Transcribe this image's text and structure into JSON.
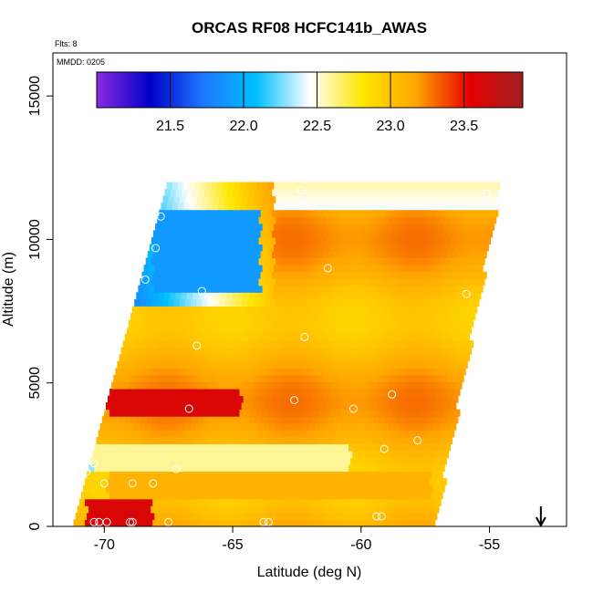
{
  "chart_data": {
    "type": "heatmap",
    "title": "ORCAS RF08 HCFC141b_AWAS",
    "annotation_flts": "Flts: 8",
    "annotation_mmdd": "MMDD: 0205",
    "xlabel": "Latitude (deg N)",
    "ylabel": "Altitude (m)",
    "xlim": [
      -72,
      -52
    ],
    "ylim": [
      0,
      16500
    ],
    "x_ticks": [
      -70,
      -65,
      -60,
      -55
    ],
    "x_tick_labels": [
      "-70",
      "-65",
      "-60",
      "-55"
    ],
    "y_ticks": [
      0,
      5000,
      10000,
      15000
    ],
    "y_tick_labels": [
      "0",
      "5000",
      "10000",
      "15000"
    ],
    "colorbar": {
      "range": [
        21.0,
        23.9
      ],
      "ticks": [
        21.5,
        22.0,
        22.5,
        23.0,
        23.5
      ],
      "tick_labels": [
        "21.5",
        "22.0",
        "22.5",
        "23.0",
        "23.5"
      ],
      "placement": "top-inside",
      "colors": [
        "#8a2be2",
        "#0000c8",
        "#1e78ff",
        "#00bfff",
        "#ffffff",
        "#ffe600",
        "#ffa500",
        "#e60000",
        "#a02020"
      ]
    },
    "field_extent": {
      "bottom_left": [
        -71.2,
        0
      ],
      "bottom_right": [
        -57.2,
        0
      ],
      "top_left": [
        -67.5,
        11500
      ],
      "top_right": [
        -54.6,
        12000
      ]
    },
    "bands": [
      {
        "alt_range": [
          0,
          900
        ],
        "lat_range": [
          -70.8,
          -68.2
        ],
        "value": 23.6
      },
      {
        "alt_range": [
          900,
          1800
        ],
        "lat_range": [
          -70.0,
          -57.4
        ],
        "value": 23.1
      },
      {
        "alt_range": [
          1800,
          2700
        ],
        "lat_range": [
          -70.6,
          -60.5
        ],
        "value": 22.6
      },
      {
        "alt_range": [
          3800,
          4700
        ],
        "lat_range": [
          -70.0,
          -64.8
        ],
        "value": 23.6
      },
      {
        "alt_range": [
          8000,
          11000
        ],
        "lat_range": [
          -68.2,
          -64.0
        ],
        "value": 21.9
      }
    ],
    "sample_points": [
      {
        "lat": -67.8,
        "alt": 10800
      },
      {
        "lat": -68.0,
        "alt": 9700
      },
      {
        "lat": -68.4,
        "alt": 8600
      },
      {
        "lat": -66.2,
        "alt": 8200
      },
      {
        "lat": -62.3,
        "alt": 11700
      },
      {
        "lat": -62.2,
        "alt": 11200
      },
      {
        "lat": -61.3,
        "alt": 9000
      },
      {
        "lat": -55.1,
        "alt": 11600
      },
      {
        "lat": -55.9,
        "alt": 8100
      },
      {
        "lat": -69.2,
        "alt": 7000
      },
      {
        "lat": -66.4,
        "alt": 6300
      },
      {
        "lat": -62.2,
        "alt": 6600
      },
      {
        "lat": -62.6,
        "alt": 4400
      },
      {
        "lat": -60.3,
        "alt": 4100
      },
      {
        "lat": -58.8,
        "alt": 4600
      },
      {
        "lat": -55.7,
        "alt": 4900
      },
      {
        "lat": -66.7,
        "alt": 4100
      },
      {
        "lat": -70.4,
        "alt": 4100
      },
      {
        "lat": -70.1,
        "alt": 4100
      },
      {
        "lat": -70.4,
        "alt": 2200
      },
      {
        "lat": -70.7,
        "alt": 1900
      },
      {
        "lat": -70.0,
        "alt": 1500
      },
      {
        "lat": -68.9,
        "alt": 1500
      },
      {
        "lat": -68.1,
        "alt": 1500
      },
      {
        "lat": -67.2,
        "alt": 2000
      },
      {
        "lat": -59.1,
        "alt": 2700
      },
      {
        "lat": -57.8,
        "alt": 3000
      },
      {
        "lat": -70.4,
        "alt": 150
      },
      {
        "lat": -70.2,
        "alt": 150
      },
      {
        "lat": -69.9,
        "alt": 150
      },
      {
        "lat": -69.0,
        "alt": 150
      },
      {
        "lat": -68.9,
        "alt": 150
      },
      {
        "lat": -67.5,
        "alt": 150
      },
      {
        "lat": -63.8,
        "alt": 150
      },
      {
        "lat": -63.6,
        "alt": 150
      },
      {
        "lat": -59.4,
        "alt": 350
      },
      {
        "lat": -59.2,
        "alt": 350
      }
    ],
    "arrow_marker": {
      "lat": -53.0,
      "direction": "down"
    },
    "grid": false,
    "legend": "none"
  }
}
